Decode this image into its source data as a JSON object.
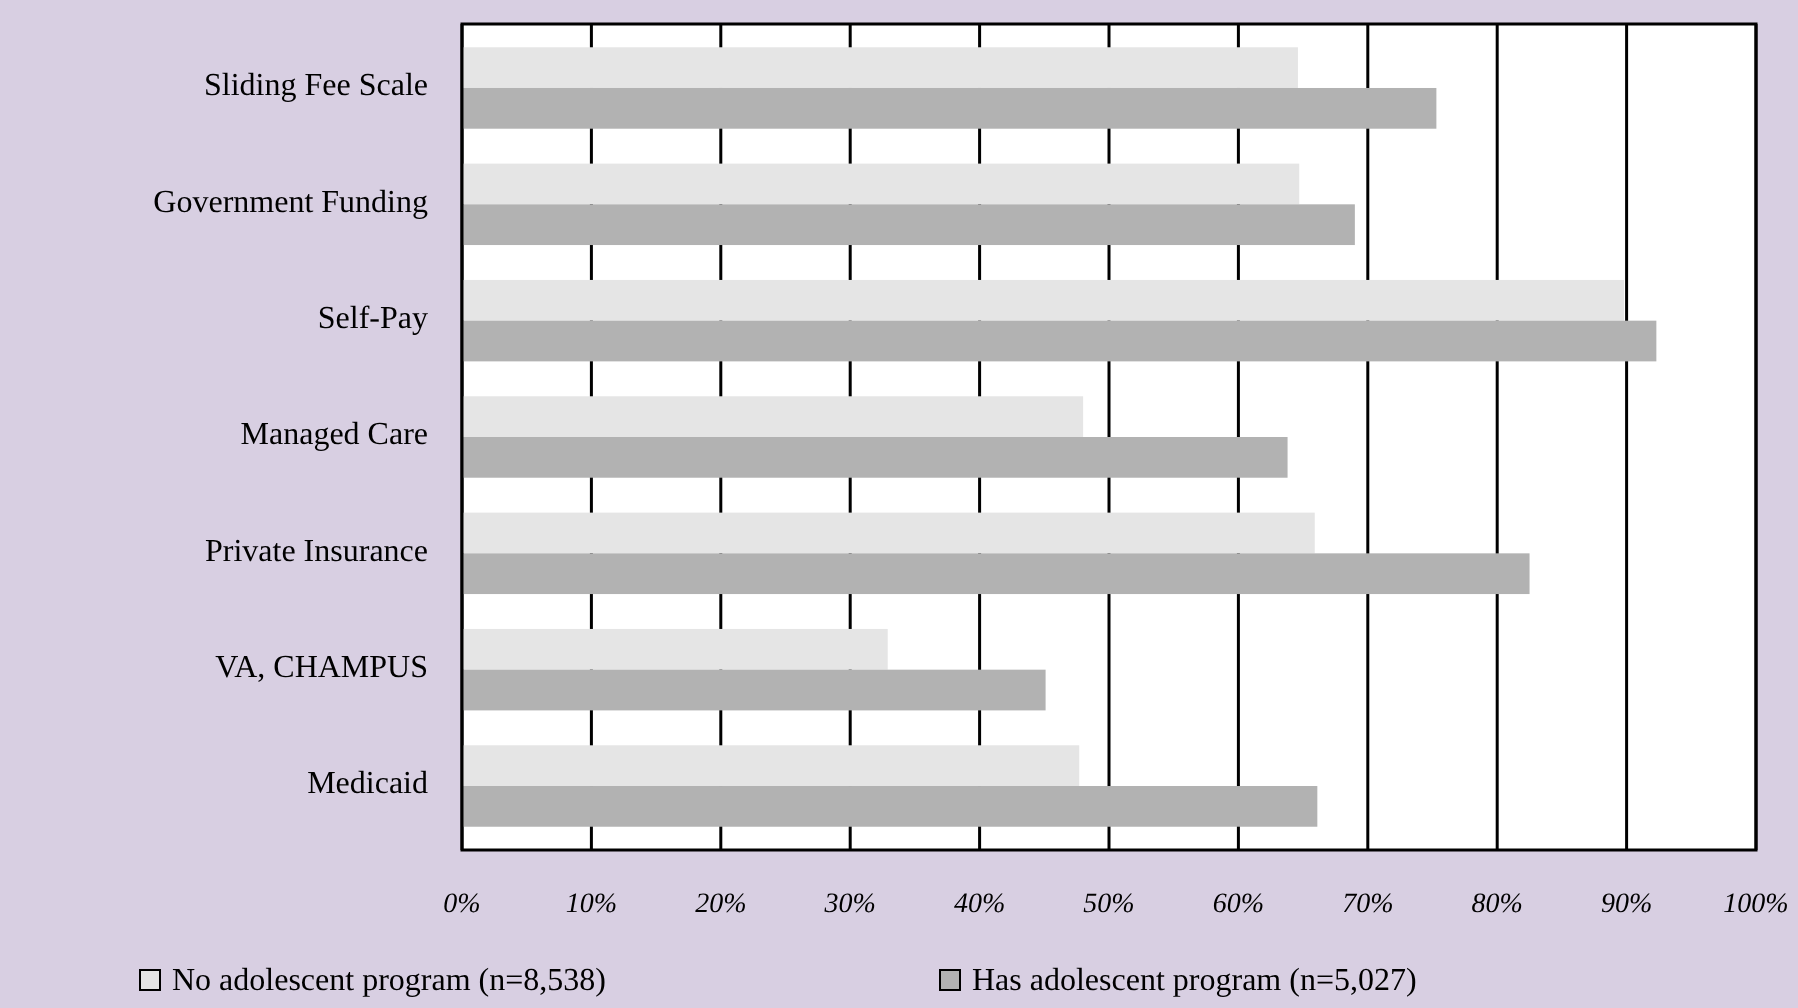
{
  "chart_data": {
    "type": "bar",
    "orientation": "horizontal",
    "categories": [
      "Sliding Fee Scale",
      "Government Funding",
      "Self-Pay",
      "Managed Care",
      "Private Insurance",
      "VA, CHAMPUS",
      "Medicaid"
    ],
    "series": [
      {
        "name": "No adolescent program (n=8,538)",
        "color": "#e5e5e5",
        "values": [
          64.6,
          64.7,
          89.8,
          48,
          65.9,
          32.9,
          47.7
        ]
      },
      {
        "name": "Has adolescent program (n=5,027)",
        "color": "#b2b2b2",
        "values": [
          75.3,
          69,
          92.3,
          63.8,
          82.5,
          45.1,
          66.1
        ]
      }
    ],
    "xlim": [
      0,
      100
    ],
    "xticks": [
      {
        "value": 0,
        "label": "0%"
      },
      {
        "value": 10,
        "label": "10%"
      },
      {
        "value": 20,
        "label": "20%"
      },
      {
        "value": 30,
        "label": "30%"
      },
      {
        "value": 40,
        "label": "40%"
      },
      {
        "value": 50,
        "label": "50%"
      },
      {
        "value": 60,
        "label": "60%"
      },
      {
        "value": 70,
        "label": "70%"
      },
      {
        "value": 80,
        "label": "80%"
      },
      {
        "value": 90,
        "label": "90%"
      },
      {
        "value": 100,
        "label": "100%"
      }
    ],
    "grid": "x",
    "legend": "bottom"
  }
}
